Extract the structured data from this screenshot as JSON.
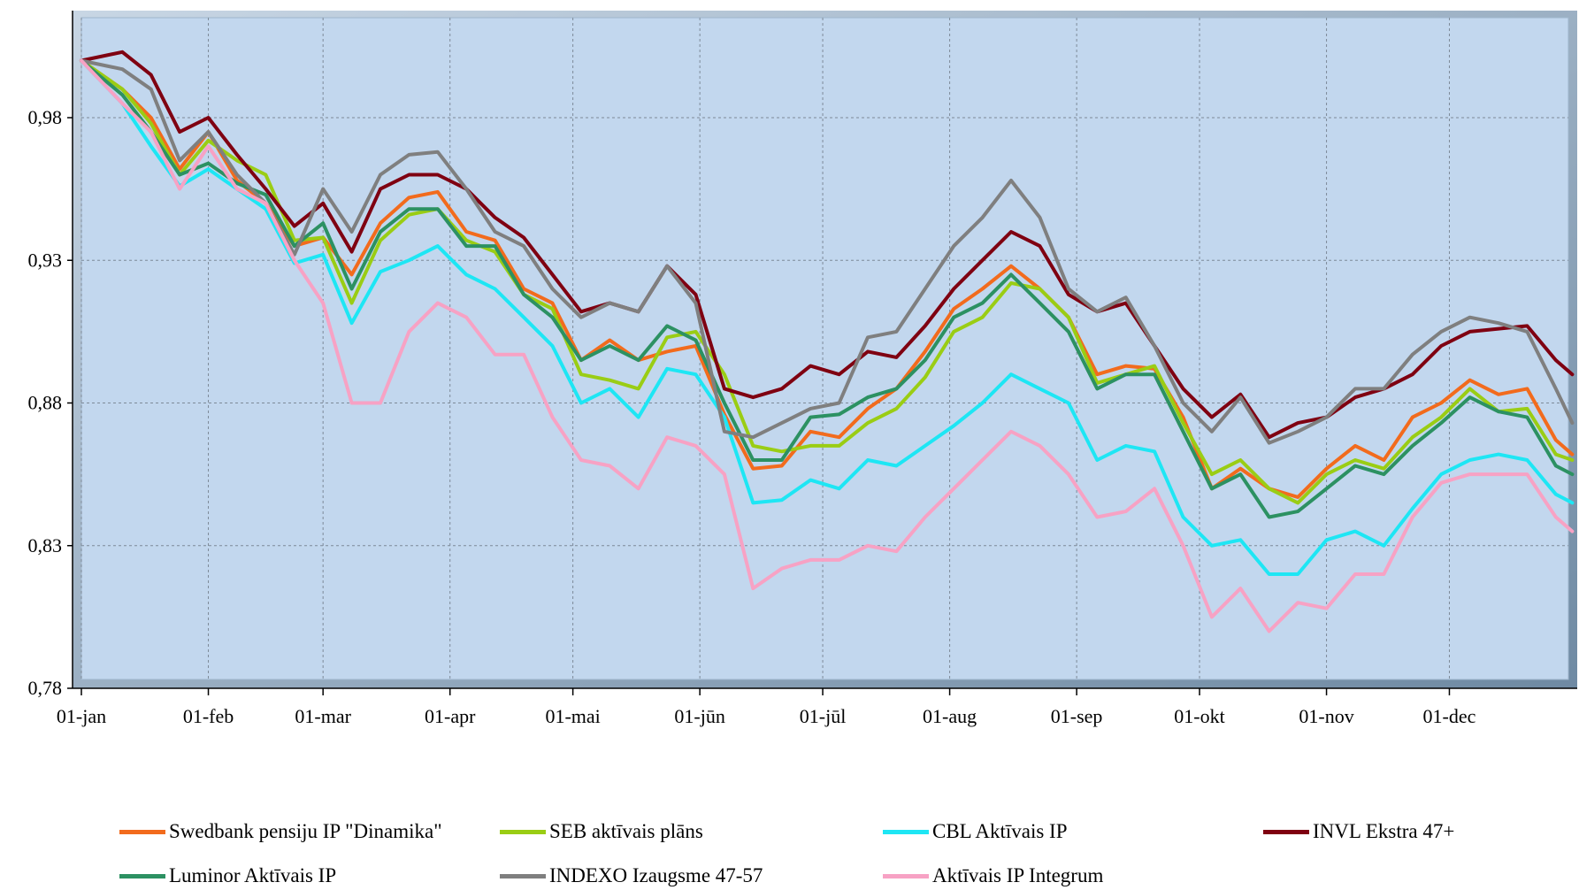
{
  "chart_data": {
    "type": "line",
    "title": "",
    "xlabel": "",
    "ylabel": "",
    "ylim": [
      0.78,
      0.98
    ],
    "x_ticks": [
      "01-jan",
      "01-feb",
      "01-mar",
      "01-apr",
      "01-mai",
      "01-jūn",
      "01-jūl",
      "01-aug",
      "01-sep",
      "01-okt",
      "01-nov",
      "01-dec"
    ],
    "y_ticks": [
      "0,78",
      "0,83",
      "0,88",
      "0,93",
      "0,98"
    ],
    "grid": true,
    "legend_position": "bottom",
    "background": "#c2d7ee",
    "x_days": [
      0,
      10,
      17,
      24,
      31,
      38,
      45,
      52,
      59,
      66,
      73,
      80,
      87,
      94,
      101,
      108,
      115,
      122,
      129,
      136,
      143,
      150,
      157,
      164,
      171,
      178,
      185,
      192,
      199,
      206,
      213,
      220,
      227,
      234,
      241,
      248,
      255,
      262,
      269,
      276,
      283,
      290,
      297,
      304,
      311,
      318,
      325,
      332,
      339,
      346,
      353,
      360,
      364
    ],
    "series": [
      {
        "name": "Swedbank pensiju IP \"Dinamika\"",
        "color": "#f26b1d",
        "values": [
          1.0,
          0.99,
          0.98,
          0.962,
          0.975,
          0.958,
          0.95,
          0.935,
          0.938,
          0.925,
          0.943,
          0.952,
          0.954,
          0.94,
          0.937,
          0.92,
          0.915,
          0.895,
          0.902,
          0.895,
          0.898,
          0.9,
          0.876,
          0.857,
          0.858,
          0.87,
          0.868,
          0.878,
          0.885,
          0.898,
          0.913,
          0.92,
          0.928,
          0.92,
          0.91,
          0.89,
          0.893,
          0.892,
          0.875,
          0.85,
          0.857,
          0.85,
          0.847,
          0.857,
          0.865,
          0.86,
          0.875,
          0.88,
          0.888,
          0.883,
          0.885,
          0.867,
          0.862
        ]
      },
      {
        "name": "SEB aktīvais plāns",
        "color": "#9acd14",
        "values": [
          1.0,
          0.99,
          0.978,
          0.96,
          0.972,
          0.965,
          0.96,
          0.937,
          0.938,
          0.915,
          0.937,
          0.946,
          0.948,
          0.937,
          0.933,
          0.918,
          0.913,
          0.89,
          0.888,
          0.885,
          0.903,
          0.905,
          0.89,
          0.865,
          0.863,
          0.865,
          0.865,
          0.873,
          0.878,
          0.889,
          0.905,
          0.91,
          0.922,
          0.92,
          0.91,
          0.887,
          0.89,
          0.893,
          0.873,
          0.855,
          0.86,
          0.85,
          0.845,
          0.855,
          0.86,
          0.857,
          0.868,
          0.875,
          0.885,
          0.877,
          0.878,
          0.862,
          0.86
        ]
      },
      {
        "name": "CBL Aktīvais IP",
        "color": "#1ee6f4",
        "values": [
          1.0,
          0.985,
          0.97,
          0.956,
          0.962,
          0.955,
          0.948,
          0.929,
          0.932,
          0.908,
          0.926,
          0.93,
          0.935,
          0.925,
          0.92,
          0.91,
          0.9,
          0.88,
          0.885,
          0.875,
          0.892,
          0.89,
          0.875,
          0.845,
          0.846,
          0.853,
          0.85,
          0.86,
          0.858,
          0.865,
          0.872,
          0.88,
          0.89,
          0.885,
          0.88,
          0.86,
          0.865,
          0.863,
          0.84,
          0.83,
          0.832,
          0.82,
          0.82,
          0.832,
          0.835,
          0.83,
          0.843,
          0.855,
          0.86,
          0.862,
          0.86,
          0.848,
          0.845
        ]
      },
      {
        "name": "INVL Ekstra 47+",
        "color": "#7f0011",
        "values": [
          1.0,
          1.003,
          0.995,
          0.975,
          0.98,
          0.967,
          0.955,
          0.942,
          0.95,
          0.933,
          0.955,
          0.96,
          0.96,
          0.955,
          0.945,
          0.938,
          0.925,
          0.912,
          0.915,
          0.912,
          0.928,
          0.918,
          0.885,
          0.882,
          0.885,
          0.893,
          0.89,
          0.898,
          0.896,
          0.907,
          0.92,
          0.93,
          0.94,
          0.935,
          0.918,
          0.912,
          0.915,
          0.9,
          0.885,
          0.875,
          0.883,
          0.868,
          0.873,
          0.875,
          0.882,
          0.885,
          0.89,
          0.9,
          0.905,
          0.906,
          0.907,
          0.895,
          0.89
        ]
      },
      {
        "name": "Luminor Aktīvais IP",
        "color": "#2c9162",
        "values": [
          1.0,
          0.988,
          0.975,
          0.96,
          0.964,
          0.957,
          0.953,
          0.935,
          0.943,
          0.92,
          0.94,
          0.948,
          0.948,
          0.935,
          0.935,
          0.918,
          0.91,
          0.895,
          0.9,
          0.895,
          0.907,
          0.902,
          0.88,
          0.86,
          0.86,
          0.875,
          0.876,
          0.882,
          0.885,
          0.895,
          0.91,
          0.915,
          0.925,
          0.915,
          0.905,
          0.885,
          0.89,
          0.89,
          0.87,
          0.85,
          0.855,
          0.84,
          0.842,
          0.85,
          0.858,
          0.855,
          0.865,
          0.873,
          0.882,
          0.877,
          0.875,
          0.858,
          0.855
        ]
      },
      {
        "name": "INDEXO Izaugsme 47-57",
        "color": "#7f7f7f",
        "values": [
          1.0,
          0.997,
          0.99,
          0.965,
          0.975,
          0.96,
          0.95,
          0.932,
          0.955,
          0.94,
          0.96,
          0.967,
          0.968,
          0.955,
          0.94,
          0.935,
          0.92,
          0.91,
          0.915,
          0.912,
          0.928,
          0.915,
          0.87,
          0.868,
          0.873,
          0.878,
          0.88,
          0.903,
          0.905,
          0.92,
          0.935,
          0.945,
          0.958,
          0.945,
          0.92,
          0.912,
          0.917,
          0.9,
          0.88,
          0.87,
          0.882,
          0.866,
          0.87,
          0.875,
          0.885,
          0.885,
          0.897,
          0.905,
          0.91,
          0.908,
          0.905,
          0.885,
          0.873
        ]
      },
      {
        "name": "Aktīvais IP Integrum",
        "color": "#f7a2c4",
        "values": [
          1.0,
          0.985,
          0.975,
          0.955,
          0.97,
          0.955,
          0.95,
          0.93,
          0.915,
          0.88,
          0.88,
          0.905,
          0.915,
          0.91,
          0.897,
          0.897,
          0.875,
          0.86,
          0.858,
          0.85,
          0.868,
          0.865,
          0.855,
          0.815,
          0.822,
          0.825,
          0.825,
          0.83,
          0.828,
          0.84,
          0.85,
          0.86,
          0.87,
          0.865,
          0.855,
          0.84,
          0.842,
          0.85,
          0.83,
          0.805,
          0.815,
          0.8,
          0.81,
          0.808,
          0.82,
          0.82,
          0.84,
          0.852,
          0.855,
          0.855,
          0.855,
          0.84,
          0.835
        ]
      }
    ]
  }
}
